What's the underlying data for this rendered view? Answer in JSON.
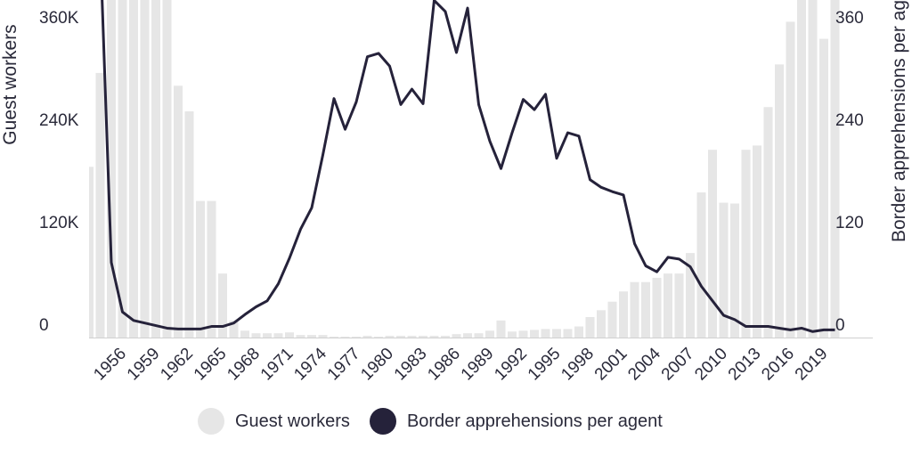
{
  "chart_data": {
    "type": "bar",
    "x_tick_labels": [
      "1956",
      "1959",
      "1962",
      "1965",
      "1968",
      "1971",
      "1974",
      "1977",
      "1980",
      "1983",
      "1986",
      "1989",
      "1992",
      "1995",
      "1998",
      "2001",
      "2004",
      "2007",
      "2010",
      "2013",
      "2016",
      "2019"
    ],
    "years": [
      1953,
      1954,
      1955,
      1956,
      1957,
      1958,
      1959,
      1960,
      1961,
      1962,
      1963,
      1964,
      1965,
      1966,
      1967,
      1968,
      1969,
      1970,
      1971,
      1972,
      1973,
      1974,
      1975,
      1976,
      1977,
      1978,
      1979,
      1980,
      1981,
      1982,
      1983,
      1984,
      1985,
      1986,
      1987,
      1988,
      1989,
      1990,
      1991,
      1992,
      1993,
      1994,
      1995,
      1996,
      1997,
      1998,
      1999,
      2000,
      2001,
      2002,
      2003,
      2004,
      2005,
      2006,
      2007,
      2008,
      2009,
      2010,
      2011,
      2012,
      2013,
      2014,
      2015,
      2016,
      2017,
      2018,
      2019,
      2020
    ],
    "left_axis": {
      "label": "Guest workers",
      "ticks": [
        "0",
        "120K",
        "240K",
        "360K"
      ],
      "tick_values": [
        0,
        120000,
        240000,
        360000
      ],
      "ylim": [
        0,
        385000
      ]
    },
    "right_axis": {
      "label": "Border apprehensions per agent",
      "ticks": [
        "0",
        "120",
        "240",
        "360"
      ],
      "tick_values": [
        0,
        120,
        240,
        360
      ],
      "ylim": [
        0,
        385
      ]
    },
    "series": [
      {
        "name": "Guest workers",
        "type": "bar",
        "color": "#e6e6e6",
        "values": [
          200000,
          310000,
          420000,
          440000,
          440000,
          430000,
          430000,
          420000,
          295000,
          265000,
          160000,
          160000,
          75000,
          20000,
          8000,
          5000,
          5000,
          5000,
          6000,
          3000,
          3000,
          3000,
          1000,
          1000,
          1000,
          2000,
          1000,
          2000,
          2000,
          2000,
          2000,
          2000,
          2000,
          4000,
          5000,
          5000,
          8000,
          20000,
          7000,
          8000,
          9000,
          10000,
          10000,
          10000,
          13000,
          24000,
          32000,
          42000,
          54000,
          65000,
          65000,
          70000,
          75000,
          75000,
          99000,
          170000,
          220000,
          158000,
          157000,
          220000,
          225000,
          270000,
          320000,
          370000,
          430000,
          440000,
          350000,
          440000
        ]
      },
      {
        "name": "Border apprehensions per agent",
        "type": "line",
        "color": "#25223a",
        "values": [
          560,
          460,
          88,
          30,
          20,
          17,
          14,
          11,
          10,
          10,
          10,
          13,
          13,
          17,
          27,
          36,
          43,
          63,
          93,
          127,
          152,
          214,
          280,
          244,
          276,
          329,
          333,
          318,
          273,
          291,
          274,
          395,
          382,
          334,
          386,
          273,
          230,
          198,
          240,
          279,
          267,
          285,
          210,
          240,
          236,
          185,
          176,
          171,
          167,
          110,
          84,
          77,
          94,
          92,
          83,
          60,
          43,
          26,
          21,
          13,
          13,
          13,
          11,
          9,
          11,
          7,
          9,
          9
        ]
      }
    ],
    "grid": false,
    "legend_position": "bottom",
    "legend": [
      {
        "label": "Guest workers",
        "color": "#e6e6e6"
      },
      {
        "label": "Border apprehensions per agent",
        "color": "#25223a"
      }
    ]
  }
}
